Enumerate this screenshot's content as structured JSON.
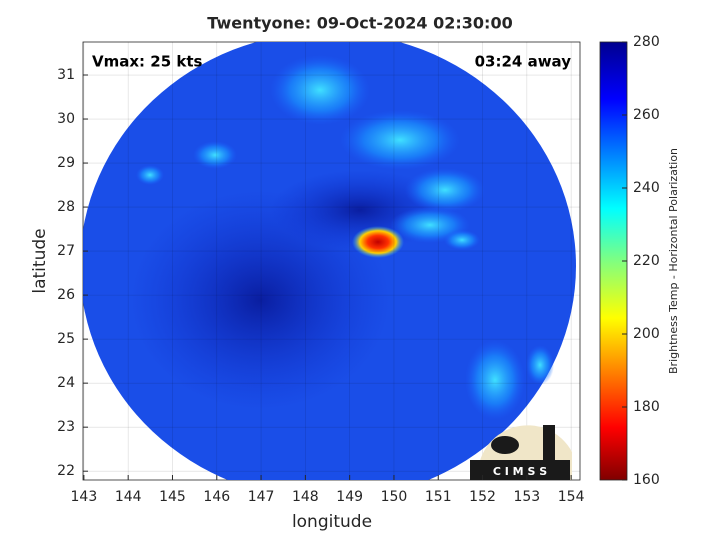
{
  "chart_data": {
    "type": "image",
    "title": "Twentyone: 09-Oct-2024 02:30:00",
    "annotations": [
      "Vmax: 25 kts",
      "03:24 away"
    ],
    "xlabel": "longitude",
    "ylabel": "latitude",
    "xlim": [
      142.98,
      154.2
    ],
    "ylim": [
      21.8,
      31.75
    ],
    "xticks": [
      143,
      144,
      145,
      146,
      147,
      148,
      149,
      150,
      151,
      152,
      153,
      154
    ],
    "yticks": [
      22,
      23,
      24,
      25,
      26,
      27,
      28,
      29,
      30,
      31
    ],
    "grid": true,
    "colorbar": {
      "label": "Brightness Temp - Horizontal Polarization",
      "lim": [
        160,
        280
      ],
      "ticks": [
        160,
        180,
        200,
        220,
        240,
        260,
        280
      ]
    },
    "logo": "C I M S S"
  }
}
